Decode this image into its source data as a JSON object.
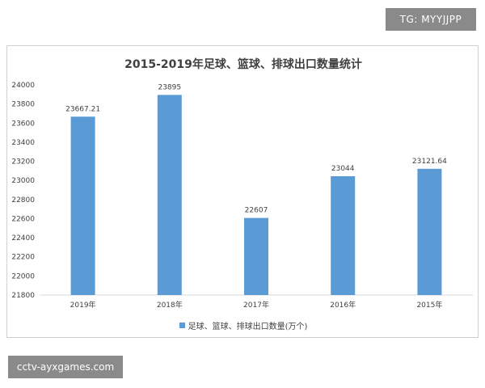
{
  "badges": {
    "top_right": "TG: MYYJJPP",
    "bottom_left": "cctv-ayxgames.com"
  },
  "chart_data": {
    "type": "bar",
    "title": "2015-2019年足球、篮球、排球出口数量统计",
    "categories": [
      "2019年",
      "2018年",
      "2017年",
      "2016年",
      "2015年"
    ],
    "series": [
      {
        "name": "足球、篮球、排球出口数量(万个)",
        "values": [
          23667.21,
          23895,
          22607,
          23044,
          23121.64
        ],
        "labels": [
          "23667.21",
          "23895",
          "22607",
          "23044",
          "23121.64"
        ],
        "color": "#5b9bd5"
      }
    ],
    "ylim": [
      21800,
      24000
    ],
    "yticks": [
      21800,
      22000,
      22200,
      22400,
      22600,
      22800,
      23000,
      23200,
      23400,
      23600,
      23800,
      24000
    ],
    "grid": false,
    "legend_position": "bottom"
  },
  "colors": {
    "bar": "#5b9bd5",
    "badge": "#8a8a8a"
  }
}
